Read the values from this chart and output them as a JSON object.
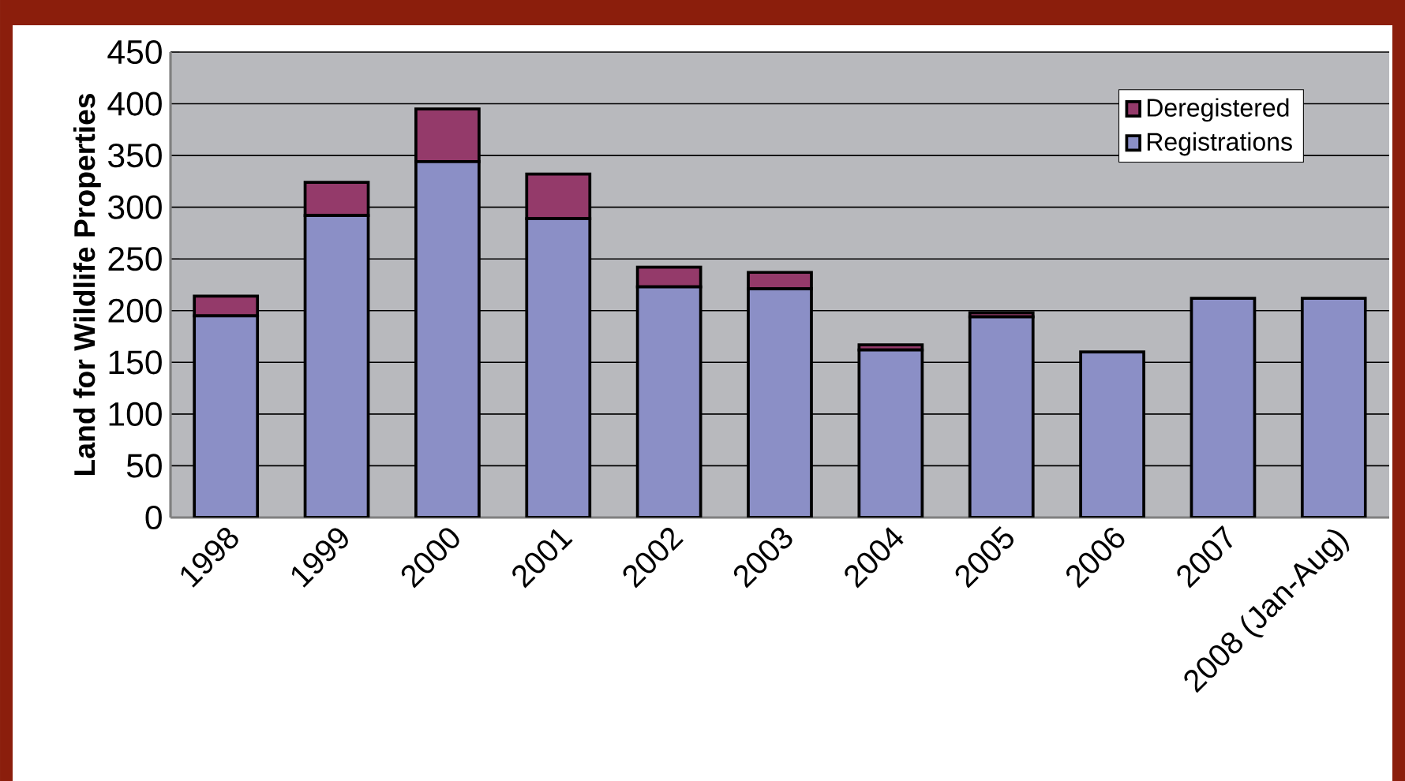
{
  "chart_data": {
    "type": "bar",
    "stacked": true,
    "ylabel": "Land for Wildlife Properties",
    "categories": [
      "1998",
      "1999",
      "2000",
      "2001",
      "2002",
      "2003",
      "2004",
      "2005",
      "2006",
      "2007",
      "2008 (Jan-Aug)"
    ],
    "series": [
      {
        "name": "Registrations",
        "color": "#8b8fc6",
        "values": [
          195,
          292,
          344,
          289,
          223,
          221,
          162,
          194,
          160,
          212,
          212
        ]
      },
      {
        "name": "Deregistered",
        "color": "#943a6a",
        "values": [
          19,
          32,
          51,
          43,
          19,
          16,
          5,
          4,
          0,
          0,
          0
        ]
      }
    ],
    "ylim": [
      0,
      450
    ],
    "yticks": [
      0,
      50,
      100,
      150,
      200,
      250,
      300,
      350,
      400,
      450
    ],
    "grid": "y",
    "legend": "top right"
  }
}
